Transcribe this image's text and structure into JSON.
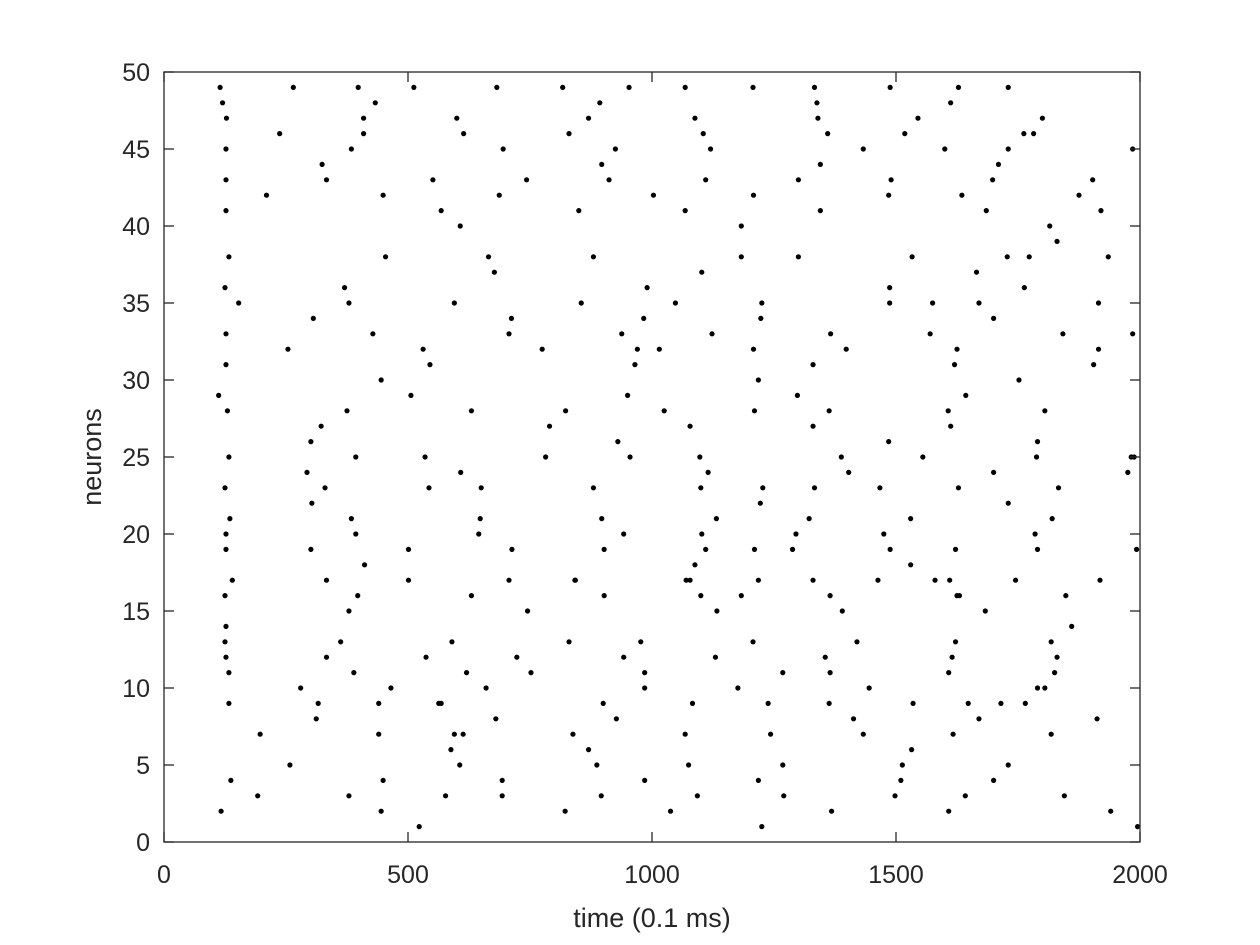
{
  "chart_data": {
    "type": "scatter",
    "title": "",
    "xlabel": "time (0.1 ms)",
    "ylabel": "neurons",
    "xlim": [
      0,
      2000
    ],
    "ylim": [
      0,
      50
    ],
    "xticks": [
      0,
      500,
      1000,
      1500,
      2000
    ],
    "yticks": [
      0,
      5,
      10,
      15,
      20,
      25,
      30,
      35,
      40,
      45,
      50
    ],
    "grid": false,
    "legend": "none",
    "marker_color": "#000000",
    "axis_color": "#262626",
    "points": [
      [
        115,
        49
      ],
      [
        120,
        48
      ],
      [
        128,
        47
      ],
      [
        127,
        45
      ],
      [
        127,
        43
      ],
      [
        127,
        41
      ],
      [
        133,
        38
      ],
      [
        125,
        36
      ],
      [
        153,
        35
      ],
      [
        127,
        33
      ],
      [
        127,
        31
      ],
      [
        112,
        29
      ],
      [
        130,
        28
      ],
      [
        133,
        25
      ],
      [
        125,
        23
      ],
      [
        135,
        21
      ],
      [
        127,
        20
      ],
      [
        127,
        19
      ],
      [
        140,
        17
      ],
      [
        125,
        16
      ],
      [
        127,
        14
      ],
      [
        125,
        13
      ],
      [
        127,
        12
      ],
      [
        133,
        11
      ],
      [
        133,
        9
      ],
      [
        137,
        4
      ],
      [
        117,
        2
      ],
      [
        265,
        49
      ],
      [
        237,
        46
      ],
      [
        210,
        42
      ],
      [
        254,
        32
      ],
      [
        197,
        7
      ],
      [
        258,
        5
      ],
      [
        192,
        3
      ],
      [
        398,
        49
      ],
      [
        433,
        48
      ],
      [
        409,
        47
      ],
      [
        409,
        46
      ],
      [
        384,
        45
      ],
      [
        324,
        44
      ],
      [
        333,
        43
      ],
      [
        370,
        36
      ],
      [
        379,
        35
      ],
      [
        306,
        34
      ],
      [
        428,
        33
      ],
      [
        375,
        28
      ],
      [
        322,
        27
      ],
      [
        301,
        26
      ],
      [
        393,
        25
      ],
      [
        293,
        24
      ],
      [
        330,
        23
      ],
      [
        303,
        22
      ],
      [
        384,
        21
      ],
      [
        393,
        20
      ],
      [
        301,
        19
      ],
      [
        411,
        18
      ],
      [
        333,
        17
      ],
      [
        397,
        16
      ],
      [
        379,
        15
      ],
      [
        362,
        13
      ],
      [
        333,
        12
      ],
      [
        389,
        11
      ],
      [
        280,
        10
      ],
      [
        316,
        9
      ],
      [
        312,
        8
      ],
      [
        379,
        3
      ],
      [
        512,
        49
      ],
      [
        449,
        42
      ],
      [
        454,
        38
      ],
      [
        445,
        30
      ],
      [
        551,
        43
      ],
      [
        568,
        41
      ],
      [
        531,
        32
      ],
      [
        545,
        31
      ],
      [
        506,
        29
      ],
      [
        535,
        25
      ],
      [
        543,
        23
      ],
      [
        501,
        19
      ],
      [
        501,
        17
      ],
      [
        537,
        12
      ],
      [
        465,
        10
      ],
      [
        440,
        9
      ],
      [
        563,
        9
      ],
      [
        440,
        7
      ],
      [
        449,
        4
      ],
      [
        577,
        3
      ],
      [
        445,
        2
      ],
      [
        523,
        1
      ],
      [
        600,
        47
      ],
      [
        614,
        46
      ],
      [
        682,
        49
      ],
      [
        695,
        45
      ],
      [
        687,
        42
      ],
      [
        743,
        43
      ],
      [
        607,
        40
      ],
      [
        665,
        38
      ],
      [
        677,
        37
      ],
      [
        595,
        35
      ],
      [
        712,
        34
      ],
      [
        707,
        33
      ],
      [
        630,
        28
      ],
      [
        608,
        24
      ],
      [
        650,
        23
      ],
      [
        648,
        21
      ],
      [
        645,
        20
      ],
      [
        713,
        19
      ],
      [
        707,
        17
      ],
      [
        630,
        16
      ],
      [
        745,
        15
      ],
      [
        590,
        13
      ],
      [
        620,
        11
      ],
      [
        660,
        10
      ],
      [
        723,
        12
      ],
      [
        752,
        11
      ],
      [
        568,
        9
      ],
      [
        595,
        7
      ],
      [
        680,
        8
      ],
      [
        613,
        7
      ],
      [
        588,
        6
      ],
      [
        606,
        5
      ],
      [
        693,
        4
      ],
      [
        693,
        3
      ],
      [
        817,
        49
      ],
      [
        953,
        49
      ],
      [
        893,
        48
      ],
      [
        870,
        47
      ],
      [
        830,
        46
      ],
      [
        925,
        45
      ],
      [
        897,
        44
      ],
      [
        912,
        43
      ],
      [
        850,
        41
      ],
      [
        880,
        38
      ],
      [
        855,
        35
      ],
      [
        990,
        36
      ],
      [
        983,
        34
      ],
      [
        938,
        33
      ],
      [
        970,
        32
      ],
      [
        775,
        32
      ],
      [
        965,
        31
      ],
      [
        823,
        28
      ],
      [
        950,
        29
      ],
      [
        790,
        27
      ],
      [
        782,
        25
      ],
      [
        930,
        26
      ],
      [
        955,
        25
      ],
      [
        880,
        23
      ],
      [
        897,
        21
      ],
      [
        902,
        19
      ],
      [
        942,
        20
      ],
      [
        843,
        17
      ],
      [
        842,
        17
      ],
      [
        902,
        16
      ],
      [
        830,
        13
      ],
      [
        977,
        13
      ],
      [
        942,
        12
      ],
      [
        985,
        11
      ],
      [
        985,
        10
      ],
      [
        900,
        9
      ],
      [
        927,
        8
      ],
      [
        838,
        7
      ],
      [
        870,
        6
      ],
      [
        887,
        5
      ],
      [
        985,
        4
      ],
      [
        896,
        3
      ],
      [
        822,
        2
      ],
      [
        1025,
        28
      ],
      [
        1068,
        49
      ],
      [
        1088,
        47
      ],
      [
        1105,
        46
      ],
      [
        1120,
        45
      ],
      [
        1110,
        43
      ],
      [
        1068,
        41
      ],
      [
        1102,
        37
      ],
      [
        1048,
        35
      ],
      [
        1123,
        33
      ],
      [
        1015,
        32
      ],
      [
        1078,
        27
      ],
      [
        1098,
        25
      ],
      [
        1115,
        24
      ],
      [
        1100,
        23
      ],
      [
        1132,
        21
      ],
      [
        1102,
        20
      ],
      [
        1088,
        18
      ],
      [
        1110,
        19
      ],
      [
        1078,
        17
      ],
      [
        1070,
        17
      ],
      [
        1100,
        16
      ],
      [
        1133,
        15
      ],
      [
        1130,
        12
      ],
      [
        1083,
        9
      ],
      [
        1068,
        7
      ],
      [
        1075,
        5
      ],
      [
        1093,
        3
      ],
      [
        1038,
        2
      ],
      [
        1003,
        42
      ],
      [
        1207,
        49
      ],
      [
        1208,
        42
      ],
      [
        1183,
        40
      ],
      [
        1183,
        38
      ],
      [
        1225,
        35
      ],
      [
        1223,
        34
      ],
      [
        1208,
        32
      ],
      [
        1218,
        30
      ],
      [
        1210,
        28
      ],
      [
        1227,
        23
      ],
      [
        1222,
        22
      ],
      [
        1210,
        19
      ],
      [
        1218,
        17
      ],
      [
        1183,
        16
      ],
      [
        1207,
        13
      ],
      [
        1176,
        10
      ],
      [
        1238,
        9
      ],
      [
        1243,
        7
      ],
      [
        1218,
        4
      ],
      [
        1225,
        1
      ]
    ],
    "points_extra": [
      [
        1333,
        49
      ],
      [
        1338,
        48
      ],
      [
        1340,
        47
      ],
      [
        1360,
        46
      ],
      [
        1345,
        44
      ],
      [
        1300,
        43
      ],
      [
        1345,
        41
      ],
      [
        1300,
        38
      ],
      [
        1366,
        33
      ],
      [
        1330,
        31
      ],
      [
        1398,
        32
      ],
      [
        1298,
        29
      ],
      [
        1363,
        28
      ],
      [
        1330,
        27
      ],
      [
        1388,
        25
      ],
      [
        1403,
        24
      ],
      [
        1333,
        23
      ],
      [
        1322,
        21
      ],
      [
        1295,
        20
      ],
      [
        1288,
        19
      ],
      [
        1330,
        17
      ],
      [
        1365,
        16
      ],
      [
        1390,
        15
      ],
      [
        1420,
        13
      ],
      [
        1355,
        12
      ],
      [
        1365,
        11
      ],
      [
        1268,
        11
      ],
      [
        1445,
        10
      ],
      [
        1363,
        9
      ],
      [
        1413,
        8
      ],
      [
        1433,
        7
      ],
      [
        1268,
        5
      ],
      [
        1270,
        3
      ],
      [
        1368,
        2
      ],
      [
        1433,
        45
      ],
      [
        1488,
        49
      ],
      [
        1490,
        43
      ],
      [
        1485,
        42
      ],
      [
        1533,
        38
      ],
      [
        1487,
        36
      ],
      [
        1487,
        35
      ],
      [
        1570,
        33
      ],
      [
        1485,
        26
      ],
      [
        1555,
        25
      ],
      [
        1467,
        23
      ],
      [
        1530,
        21
      ],
      [
        1475,
        20
      ],
      [
        1488,
        19
      ],
      [
        1530,
        18
      ],
      [
        1463,
        17
      ],
      [
        1535,
        9
      ],
      [
        1513,
        5
      ],
      [
        1510,
        4
      ],
      [
        1498,
        3
      ],
      [
        1545,
        47
      ],
      [
        1518,
        46
      ],
      [
        1532,
        6
      ],
      [
        1628,
        49
      ],
      [
        1612,
        48
      ],
      [
        1635,
        42
      ],
      [
        1600,
        45
      ],
      [
        1607,
        28
      ],
      [
        1612,
        27
      ],
      [
        1643,
        29
      ],
      [
        1625,
        32
      ],
      [
        1620,
        31
      ],
      [
        1575,
        35
      ],
      [
        1628,
        23
      ],
      [
        1622,
        19
      ],
      [
        1610,
        17
      ],
      [
        1625,
        16
      ],
      [
        1622,
        13
      ],
      [
        1615,
        12
      ],
      [
        1608,
        11
      ],
      [
        1617,
        7
      ],
      [
        1630,
        16
      ],
      [
        1608,
        2
      ],
      [
        1642,
        3
      ],
      [
        1580,
        17
      ],
      [
        1730,
        49
      ],
      [
        1800,
        47
      ],
      [
        1782,
        46
      ],
      [
        1762,
        46
      ],
      [
        1730,
        45
      ],
      [
        1710,
        44
      ],
      [
        1698,
        43
      ],
      [
        1685,
        41
      ],
      [
        1665,
        37
      ],
      [
        1670,
        35
      ],
      [
        1700,
        34
      ],
      [
        1728,
        38
      ],
      [
        1773,
        38
      ],
      [
        1763,
        36
      ],
      [
        1752,
        30
      ],
      [
        1805,
        28
      ],
      [
        1790,
        26
      ],
      [
        1788,
        25
      ],
      [
        1700,
        24
      ],
      [
        1730,
        22
      ],
      [
        1785,
        20
      ],
      [
        1790,
        19
      ],
      [
        1745,
        17
      ],
      [
        1683,
        15
      ],
      [
        1790,
        10
      ],
      [
        1765,
        9
      ],
      [
        1670,
        8
      ],
      [
        1730,
        5
      ],
      [
        1700,
        4
      ],
      [
        1648,
        9
      ],
      [
        1715,
        9
      ],
      [
        1875,
        42
      ],
      [
        1903,
        43
      ],
      [
        1915,
        35
      ],
      [
        1920,
        41
      ],
      [
        1935,
        38
      ],
      [
        1905,
        31
      ],
      [
        1915,
        32
      ],
      [
        1815,
        40
      ],
      [
        1830,
        39
      ],
      [
        1842,
        33
      ],
      [
        1820,
        21
      ],
      [
        1833,
        23
      ],
      [
        1825,
        11
      ],
      [
        1830,
        12
      ],
      [
        1818,
        13
      ],
      [
        1860,
        14
      ],
      [
        1848,
        16
      ],
      [
        1918,
        17
      ],
      [
        1818,
        7
      ],
      [
        1845,
        3
      ],
      [
        1912,
        8
      ],
      [
        1940,
        2
      ],
      [
        1985,
        45
      ],
      [
        1985,
        33
      ],
      [
        1975,
        24
      ],
      [
        1988,
        25
      ],
      [
        1993,
        19
      ],
      [
        1995,
        1
      ],
      [
        1805,
        10
      ],
      [
        1982,
        25
      ]
    ]
  }
}
